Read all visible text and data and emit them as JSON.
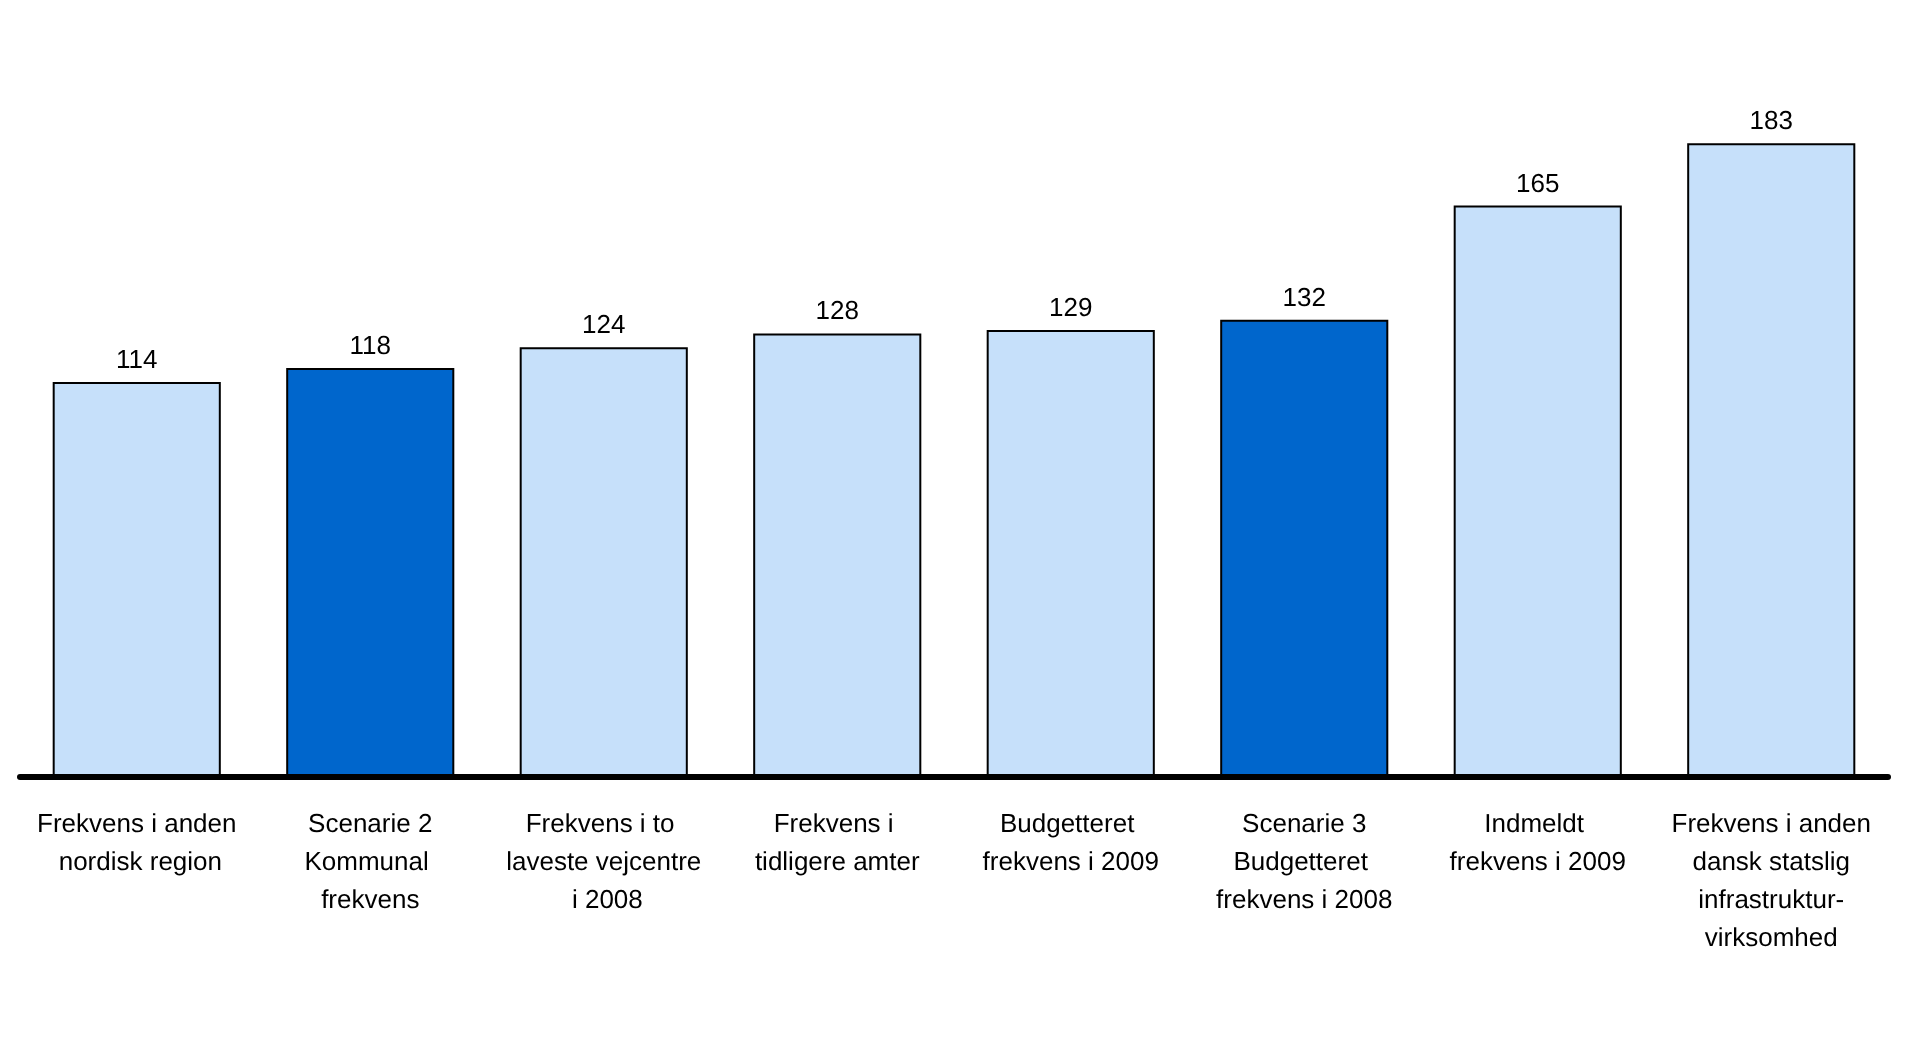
{
  "chart_data": {
    "type": "bar",
    "categories": [
      "Frekvens i anden nordisk region",
      "Scenarie 2\nKommunal frekvens",
      "Frekvens i to laveste vejcentre i 2008",
      "Frekvens i tidligere amter",
      "Budgetteret frekvens i 2009",
      "Scenarie 3\nBudgetteret frekvens i 2008",
      "Indmeldt frekvens i 2009",
      "Frekvens i anden dansk statslig infrastruktur-\nvirksomhed"
    ],
    "values": [
      114,
      118,
      124,
      128,
      129,
      132,
      165,
      183
    ],
    "colors": [
      "#c6e0fa",
      "#0066cc",
      "#c6e0fa",
      "#c6e0fa",
      "#c6e0fa",
      "#0066cc",
      "#c6e0fa",
      "#c6e0fa"
    ],
    "data_labels": true
  }
}
